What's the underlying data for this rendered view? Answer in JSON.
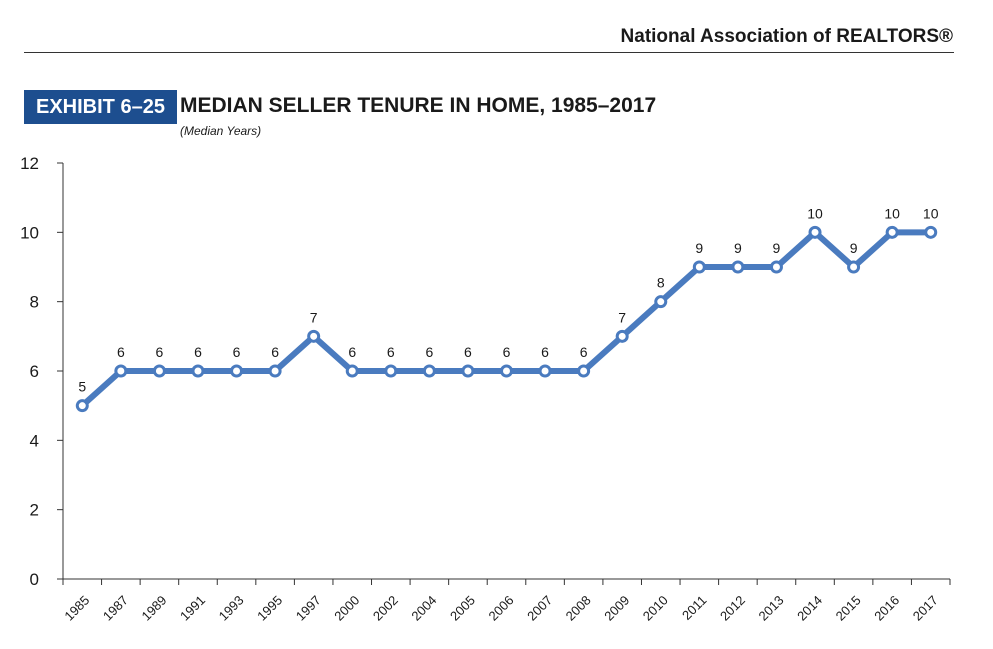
{
  "header": {
    "publisher": "National Association of REALTORS®",
    "exhibit": "EXHIBIT 6–25",
    "title": "MEDIAN SELLER TENURE IN HOME, 1985–2017",
    "subtitle": "(Median Years)"
  },
  "chart_data": {
    "type": "line",
    "title": "MEDIAN SELLER TENURE IN HOME, 1985–2017",
    "subtitle": "(Median Years)",
    "categories": [
      "1985",
      "1987",
      "1989",
      "1991",
      "1993",
      "1995",
      "1997",
      "2000",
      "2002",
      "2004",
      "2005",
      "2006",
      "2007",
      "2008",
      "2009",
      "2010",
      "2011",
      "2012",
      "2013",
      "2014",
      "2015",
      "2016",
      "2017"
    ],
    "series": [
      {
        "values": [
          5,
          6,
          6,
          6,
          6,
          6,
          7,
          6,
          6,
          6,
          6,
          6,
          6,
          6,
          7,
          8,
          9,
          9,
          9,
          10,
          9,
          10,
          10
        ]
      }
    ],
    "ylim": [
      0,
      12
    ],
    "yticks": [
      0,
      2,
      4,
      6,
      8,
      10,
      12
    ],
    "grid": false,
    "data_labels": true,
    "colors": {
      "line": "#4a7bbf",
      "marker_fill": "#ffffff",
      "badge": "#1d4e8f"
    }
  }
}
